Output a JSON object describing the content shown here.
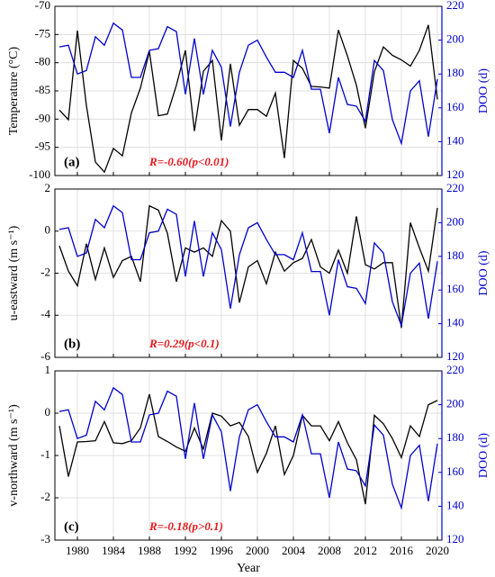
{
  "chart_data": [
    {
      "type": "line",
      "panel_label": "(a)",
      "annotation": "R=-0.60(p<0.01)",
      "ylabel": "Temperature (°C)",
      "y2label": "DOO (d)",
      "x": [
        1978,
        1979,
        1980,
        1981,
        1982,
        1983,
        1984,
        1985,
        1986,
        1987,
        1988,
        1989,
        1990,
        1991,
        1992,
        1993,
        1994,
        1995,
        1996,
        1997,
        1998,
        1999,
        2000,
        2001,
        2002,
        2003,
        2004,
        2005,
        2006,
        2007,
        2008,
        2009,
        2010,
        2011,
        2012,
        2013,
        2014,
        2015,
        2016,
        2017,
        2018,
        2019,
        2020
      ],
      "xlim": [
        1977.5,
        2020.5
      ],
      "xticks": [
        1980,
        1984,
        1988,
        1992,
        1996,
        2000,
        2004,
        2008,
        2012,
        2016,
        2020
      ],
      "ylim": [
        -100,
        -70
      ],
      "yticks": [
        -100,
        -95,
        -90,
        -85,
        -80,
        -75,
        -70
      ],
      "y2lim": [
        120,
        220
      ],
      "y2ticks": [
        120,
        140,
        160,
        180,
        200,
        220
      ],
      "grid": true,
      "series": [
        {
          "color": "#000000",
          "values": [
            -88.4,
            -90.1,
            -74.3,
            -87.6,
            -97.6,
            -99.4,
            -95.2,
            -96.5,
            -88.9,
            -84.5,
            -78.0,
            -89.4,
            -89.1,
            -84.0,
            -77.8,
            -92.1,
            -81.5,
            -79.6,
            -93.8,
            -80.2,
            -91.1,
            -88.3,
            -88.3,
            -89.5,
            -85.4,
            -96.9,
            -79.6,
            -81.0,
            -84.2,
            -84.3,
            -84.5,
            -74.2,
            -78.8,
            -84.0,
            -91.6,
            -81.6,
            -77.2,
            -78.7,
            -79.5,
            -80.6,
            -77.8,
            -73.3,
            -86.5
          ]
        },
        {
          "color": "#0000cc",
          "axis": "y2",
          "values": [
            196,
            197,
            180,
            182,
            202,
            197,
            210,
            206,
            178,
            178,
            194,
            195,
            208,
            205,
            168,
            201,
            168,
            194,
            184,
            149,
            181,
            197,
            200,
            190,
            181,
            181,
            178,
            194,
            171,
            171,
            145,
            178,
            162,
            161,
            152,
            188,
            182,
            153,
            139,
            170,
            176,
            143,
            177
          ]
        }
      ]
    },
    {
      "type": "line",
      "panel_label": "(b)",
      "annotation": "R=0.29(p<0.1)",
      "ylabel": "u-eastward (m s⁻¹)",
      "y2label": "DOO (d)",
      "x": [
        1978,
        1979,
        1980,
        1981,
        1982,
        1983,
        1984,
        1985,
        1986,
        1987,
        1988,
        1989,
        1990,
        1991,
        1992,
        1993,
        1994,
        1995,
        1996,
        1997,
        1998,
        1999,
        2000,
        2001,
        2002,
        2003,
        2004,
        2005,
        2006,
        2007,
        2008,
        2009,
        2010,
        2011,
        2012,
        2013,
        2014,
        2015,
        2016,
        2017,
        2018,
        2019,
        2020
      ],
      "xlim": [
        1977.5,
        2020.5
      ],
      "xticks": [
        1980,
        1984,
        1988,
        1992,
        1996,
        2000,
        2004,
        2008,
        2012,
        2016,
        2020
      ],
      "ylim": [
        -6,
        2
      ],
      "yticks": [
        -6,
        -4,
        -2,
        0,
        2
      ],
      "y2lim": [
        120,
        220
      ],
      "y2ticks": [
        120,
        140,
        160,
        180,
        200,
        220
      ],
      "grid": true,
      "series": [
        {
          "color": "#000000",
          "values": [
            -0.7,
            -1.9,
            -2.6,
            -0.6,
            -2.3,
            -0.8,
            -2.2,
            -1.4,
            -1.2,
            -2.4,
            1.2,
            1.0,
            -0.1,
            -2.4,
            -0.8,
            -1.0,
            -0.8,
            -1.2,
            0.5,
            0.0,
            -3.4,
            -1.7,
            -1.4,
            -2.5,
            -1.0,
            -1.9,
            -1.5,
            -1.3,
            -0.4,
            -1.7,
            -2.0,
            -0.9,
            -2.0,
            0.7,
            -1.6,
            -1.8,
            -1.5,
            -1.5,
            -4.6,
            0.4,
            -0.8,
            -1.9,
            1.1
          ]
        },
        {
          "color": "#0000cc",
          "axis": "y2",
          "values": [
            196,
            197,
            180,
            182,
            202,
            197,
            210,
            206,
            178,
            178,
            194,
            195,
            208,
            205,
            168,
            201,
            168,
            194,
            184,
            149,
            181,
            197,
            200,
            190,
            181,
            181,
            178,
            194,
            171,
            171,
            145,
            178,
            162,
            161,
            152,
            188,
            182,
            153,
            139,
            170,
            176,
            143,
            177
          ]
        }
      ]
    },
    {
      "type": "line",
      "panel_label": "(c)",
      "annotation": "R=-0.18(p>0.1)",
      "ylabel": "v-northward (m s⁻¹)",
      "y2label": "DOO (d)",
      "xlabel": "Year",
      "x": [
        1978,
        1979,
        1980,
        1981,
        1982,
        1983,
        1984,
        1985,
        1986,
        1987,
        1988,
        1989,
        1990,
        1991,
        1992,
        1993,
        1994,
        1995,
        1996,
        1997,
        1998,
        1999,
        2000,
        2001,
        2002,
        2003,
        2004,
        2005,
        2006,
        2007,
        2008,
        2009,
        2010,
        2011,
        2012,
        2013,
        2014,
        2015,
        2016,
        2017,
        2018,
        2019,
        2020
      ],
      "xlim": [
        1977.5,
        2020.5
      ],
      "xticks": [
        1980,
        1984,
        1988,
        1992,
        1996,
        2000,
        2004,
        2008,
        2012,
        2016,
        2020
      ],
      "show_xtick_labels": true,
      "ylim": [
        -3,
        1
      ],
      "yticks": [
        -3,
        -2,
        -1,
        0,
        1
      ],
      "y2lim": [
        120,
        220
      ],
      "y2ticks": [
        120,
        140,
        160,
        180,
        200,
        220
      ],
      "grid": true,
      "series": [
        {
          "color": "#000000",
          "values": [
            -0.3,
            -1.5,
            -0.68,
            -0.67,
            -0.65,
            -0.2,
            -0.7,
            -0.72,
            -0.65,
            -0.35,
            0.45,
            -0.55,
            -0.67,
            -0.8,
            -0.9,
            -0.35,
            -0.85,
            0.0,
            -0.07,
            -0.3,
            -0.22,
            -0.55,
            -1.4,
            -0.95,
            -0.3,
            -1.45,
            -1.0,
            -0.05,
            -0.3,
            -0.3,
            -0.65,
            -0.2,
            -0.7,
            -1.1,
            -2.15,
            -0.05,
            -0.25,
            -0.6,
            -1.05,
            -0.3,
            -0.55,
            0.2,
            0.3
          ]
        },
        {
          "color": "#0000cc",
          "axis": "y2",
          "values": [
            196,
            197,
            180,
            182,
            202,
            197,
            210,
            206,
            178,
            178,
            194,
            195,
            208,
            205,
            168,
            201,
            168,
            194,
            184,
            149,
            181,
            197,
            200,
            190,
            181,
            181,
            178,
            194,
            171,
            171,
            145,
            178,
            162,
            161,
            152,
            188,
            182,
            153,
            139,
            170,
            176,
            143,
            177
          ]
        }
      ]
    }
  ]
}
